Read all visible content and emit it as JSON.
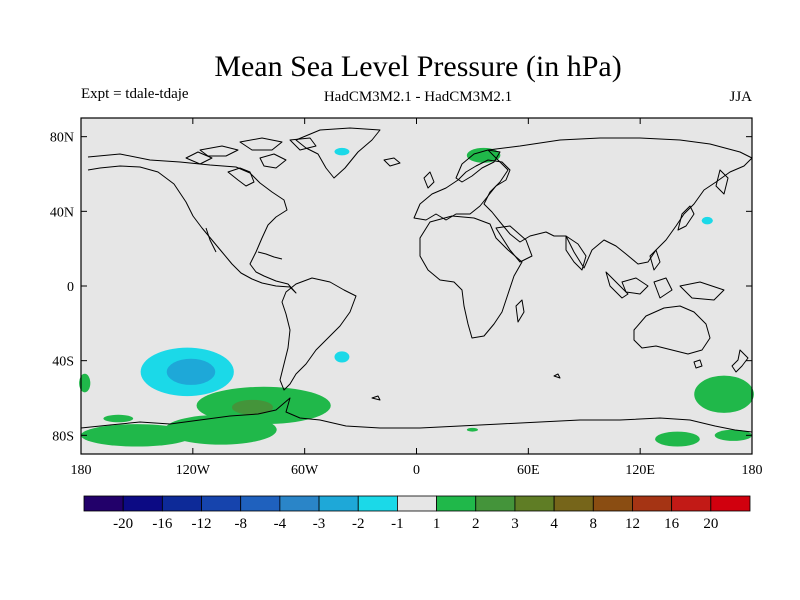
{
  "chart_data": {
    "type": "map",
    "title": "Mean Sea Level Pressure (in hPa)",
    "subtitle_left": "Expt = tdale-tdaje",
    "subtitle_center": "HadCM3M2.1 - HadCM3M2.1",
    "subtitle_right": "JJA",
    "x_ticks": [
      {
        "value": -180,
        "label": "180"
      },
      {
        "value": -120,
        "label": "120W"
      },
      {
        "value": -60,
        "label": "60W"
      },
      {
        "value": 0,
        "label": "0"
      },
      {
        "value": 60,
        "label": "60E"
      },
      {
        "value": 120,
        "label": "120E"
      },
      {
        "value": 180,
        "label": "180"
      }
    ],
    "y_ticks": [
      {
        "value": 80,
        "label": "80N"
      },
      {
        "value": 40,
        "label": "40N"
      },
      {
        "value": 0,
        "label": "0"
      },
      {
        "value": -40,
        "label": "40S"
      },
      {
        "value": -80,
        "label": "80S"
      }
    ],
    "xlim": [
      -180,
      180
    ],
    "ylim": [
      -90,
      90
    ],
    "background_color": "#e6e6e6",
    "colorbar": {
      "colors": [
        "#22006a",
        "#0c0a84",
        "#0d2a98",
        "#1644ad",
        "#1f61be",
        "#2a85c8",
        "#1ea8d8",
        "#1bd9e8",
        "#e6e6e6",
        "#20b84a",
        "#44943a",
        "#5f7d25",
        "#76651a",
        "#8a4d12",
        "#a53414",
        "#c21a16",
        "#d1000e"
      ],
      "labels": [
        "-20",
        "-16",
        "-12",
        "-8",
        "-4",
        "-3",
        "-2",
        "-1",
        "1",
        "2",
        "3",
        "4",
        "8",
        "12",
        "16",
        "20"
      ]
    },
    "anomaly_regions": [
      {
        "name": "south-pacific-negative",
        "value": -1,
        "lon": -123,
        "lat": -46,
        "half_width_lon": 25,
        "half_height_lat": 13
      },
      {
        "name": "south-pacific-negative-core",
        "value": -2,
        "lon": -121,
        "lat": -46,
        "half_width_lon": 13,
        "half_height_lat": 7
      },
      {
        "name": "south-atlantic-negative",
        "value": -1,
        "lon": -40,
        "lat": -38,
        "half_width_lon": 4,
        "half_height_lat": 3
      },
      {
        "name": "greenland-negative",
        "value": -1,
        "lon": -40,
        "lat": 72,
        "half_width_lon": 4,
        "half_height_lat": 2
      },
      {
        "name": "north-pacific-negative",
        "value": -1,
        "lon": 156,
        "lat": 35,
        "half_width_lon": 3,
        "half_height_lat": 2
      },
      {
        "name": "scandinavia-positive",
        "value": 1,
        "lon": 36,
        "lat": 70,
        "half_width_lon": 9,
        "half_height_lat": 4
      },
      {
        "name": "drake-passage-positive",
        "value": 1,
        "lon": -82,
        "lat": -64,
        "half_width_lon": 36,
        "half_height_lat": 10
      },
      {
        "name": "drake-passage-positive-core",
        "value": 2,
        "lon": -88,
        "lat": -65,
        "half_width_lon": 11,
        "half_height_lat": 4
      },
      {
        "name": "southern-ocean-band-west",
        "value": 1,
        "lon": -150,
        "lat": -80,
        "half_width_lon": 30,
        "half_height_lat": 6
      },
      {
        "name": "southern-ocean-band-central",
        "value": 1,
        "lon": -105,
        "lat": -77,
        "half_width_lon": 30,
        "half_height_lat": 8
      },
      {
        "name": "south-pacific-positive-small",
        "value": 1,
        "lon": -160,
        "lat": -71,
        "half_width_lon": 8,
        "half_height_lat": 2
      },
      {
        "name": "indian-ocean-positive-small",
        "value": 1,
        "lon": 30,
        "lat": -77,
        "half_width_lon": 3,
        "half_height_lat": 1
      },
      {
        "name": "australia-south-positive",
        "value": 1,
        "lon": 165,
        "lat": -58,
        "half_width_lon": 16,
        "half_height_lat": 10
      },
      {
        "name": "ross-sea-positive",
        "value": 1,
        "lon": 140,
        "lat": -82,
        "half_width_lon": 12,
        "half_height_lat": 4
      },
      {
        "name": "ross-sea-positive-east",
        "value": 1,
        "lon": 170,
        "lat": -80,
        "half_width_lon": 10,
        "half_height_lat": 3
      },
      {
        "name": "southwest-edge-positive",
        "value": 1,
        "lon": -178,
        "lat": -52,
        "half_width_lon": 3,
        "half_height_lat": 5
      }
    ]
  }
}
